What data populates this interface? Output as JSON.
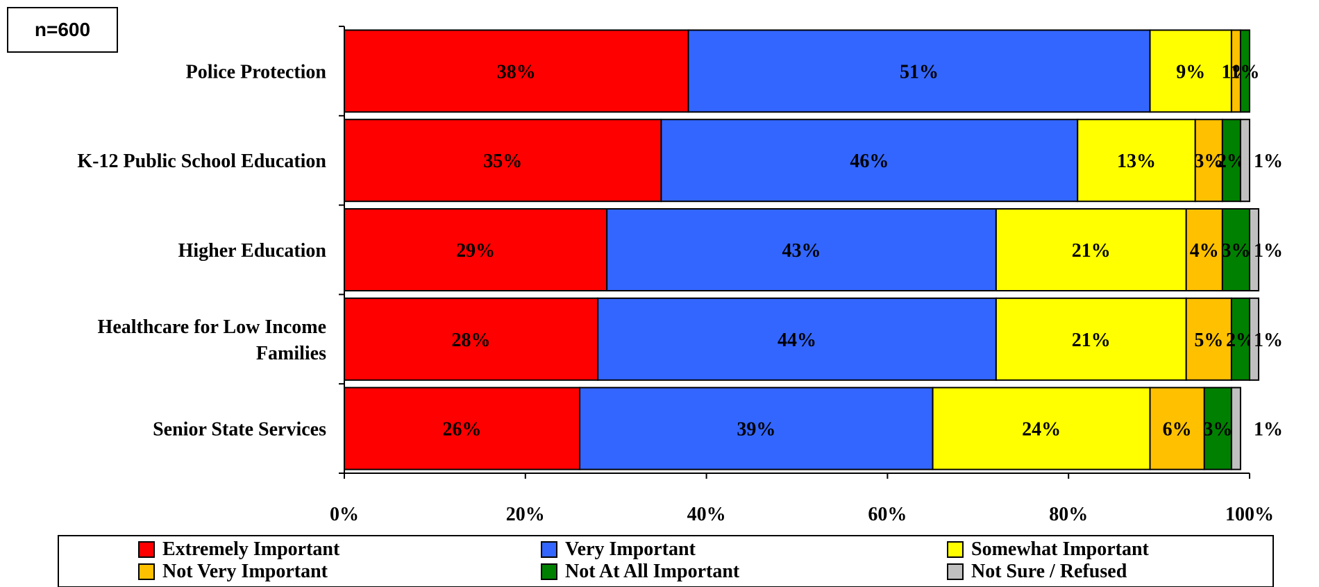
{
  "sample_note": "n=600",
  "chart_data": {
    "type": "bar",
    "orientation": "horizontal",
    "stacked": true,
    "categories": [
      "Police Protection",
      "K-12 Public School Education",
      "Higher Education",
      "Healthcare for Low Income Families",
      "Senior State Services"
    ],
    "category_lines": [
      [
        "Police Protection"
      ],
      [
        "K-12 Public School Education"
      ],
      [
        "Higher Education"
      ],
      [
        "Healthcare for Low Income",
        "Families"
      ],
      [
        "Senior State Services"
      ]
    ],
    "series": [
      {
        "name": "Extremely Important",
        "color": "#ff0000",
        "values": [
          38,
          35,
          29,
          28,
          26
        ],
        "labels": [
          "38%",
          "35%",
          "29%",
          "28%",
          "26%"
        ]
      },
      {
        "name": "Very Important",
        "color": "#3366ff",
        "values": [
          51,
          46,
          43,
          44,
          39
        ],
        "labels": [
          "51%",
          "46%",
          "43%",
          "44%",
          "39%"
        ]
      },
      {
        "name": "Somewhat Important",
        "color": "#ffff00",
        "values": [
          9,
          13,
          21,
          21,
          24
        ],
        "labels": [
          "9%",
          "13%",
          "21%",
          "21%",
          "24%"
        ]
      },
      {
        "name": "Not Very Important",
        "color": "#ffc000",
        "values": [
          1,
          3,
          4,
          5,
          6
        ],
        "labels": [
          "1%",
          "3%",
          "4%",
          "5%",
          "6%"
        ]
      },
      {
        "name": "Not At All Important",
        "color": "#008000",
        "values": [
          1,
          2,
          3,
          2,
          3
        ],
        "labels": [
          "1%",
          "2%",
          "3%",
          "2%",
          "3%"
        ]
      },
      {
        "name": "Not Sure / Refused",
        "color": "#c0c0c0",
        "values": [
          0,
          1,
          1,
          1,
          1
        ],
        "labels": [
          "",
          "1%",
          "1%",
          "1%",
          "1%"
        ]
      }
    ],
    "xlim": [
      0,
      100
    ],
    "x_ticks": [
      "0%",
      "20%",
      "40%",
      "60%",
      "80%",
      "100%"
    ],
    "legend_position": "bottom",
    "grid": false
  }
}
